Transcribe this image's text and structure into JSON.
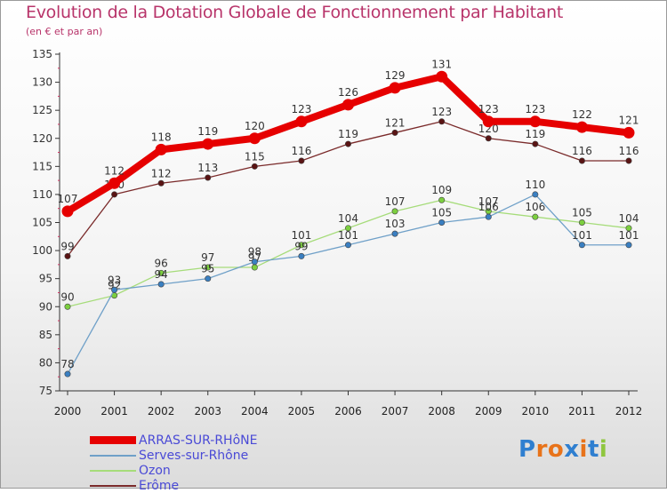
{
  "header": {
    "title": "Evolution de la Dotation Globale de Fonctionnement par Habitant",
    "subtitle": "(en € et par an)"
  },
  "chart_data": {
    "type": "line",
    "title": "Evolution de la Dotation Globale de Fonctionnement par Habitant",
    "subtitle": "(en € et par an)",
    "xlabel": "",
    "ylabel": "",
    "x": [
      "2000",
      "2001",
      "2002",
      "2003",
      "2004",
      "2005",
      "2006",
      "2007",
      "2008",
      "2009",
      "2010",
      "2011",
      "2012"
    ],
    "ylim": [
      75,
      135
    ],
    "yticks": [
      75,
      80,
      85,
      90,
      95,
      100,
      105,
      110,
      115,
      120,
      125,
      130,
      135
    ],
    "grid": false,
    "legend_position": "bottom-left",
    "series": [
      {
        "name": "ARRAS-SUR-RHôNE",
        "color": "#e60000",
        "values": [
          107,
          112,
          118,
          119,
          120,
          123,
          126,
          129,
          131,
          123,
          123,
          122,
          121
        ]
      },
      {
        "name": "Serves-sur-Rhône",
        "color": "#6fa0c8",
        "marker_color": "#3a7fc1",
        "values": [
          78,
          93,
          94,
          95,
          98,
          99,
          101,
          103,
          105,
          106,
          110,
          101,
          101
        ]
      },
      {
        "name": "Ozon",
        "color": "#a6dc7a",
        "marker_color": "#7ccf3f",
        "values": [
          90,
          92,
          96,
          97,
          97,
          101,
          104,
          107,
          109,
          107,
          106,
          105,
          104
        ]
      },
      {
        "name": "Erôme",
        "color": "#7a2a2a",
        "marker_color": "#5a1414",
        "values": [
          99,
          110,
          112,
          113,
          115,
          116,
          119,
          121,
          123,
          120,
          119,
          116,
          116
        ]
      }
    ]
  },
  "logo": {
    "text": "Proxiti",
    "letter_colors": [
      "#2f7fd0",
      "#e8731a",
      "#e8731a",
      "#2f7fd0",
      "#e8731a",
      "#2f7fd0",
      "#8fc63f"
    ]
  }
}
